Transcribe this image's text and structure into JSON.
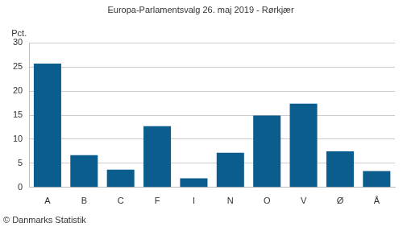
{
  "chart_data": {
    "type": "bar",
    "title": "Europa-Parlamentsvalg 26. maj 2019 - Rørkjær",
    "ylabel": "Pct.",
    "source": "© Danmarks Statistik",
    "categories": [
      "A",
      "B",
      "C",
      "F",
      "I",
      "N",
      "O",
      "V",
      "Ø",
      "Å"
    ],
    "values": [
      25.7,
      6.7,
      3.7,
      12.7,
      1.9,
      7.2,
      14.9,
      17.4,
      7.5,
      3.4
    ],
    "color": "#0b5d8e",
    "ylim": [
      0,
      30
    ],
    "yticks": [
      0,
      5,
      10,
      15,
      20,
      25,
      30
    ],
    "grid": true
  }
}
